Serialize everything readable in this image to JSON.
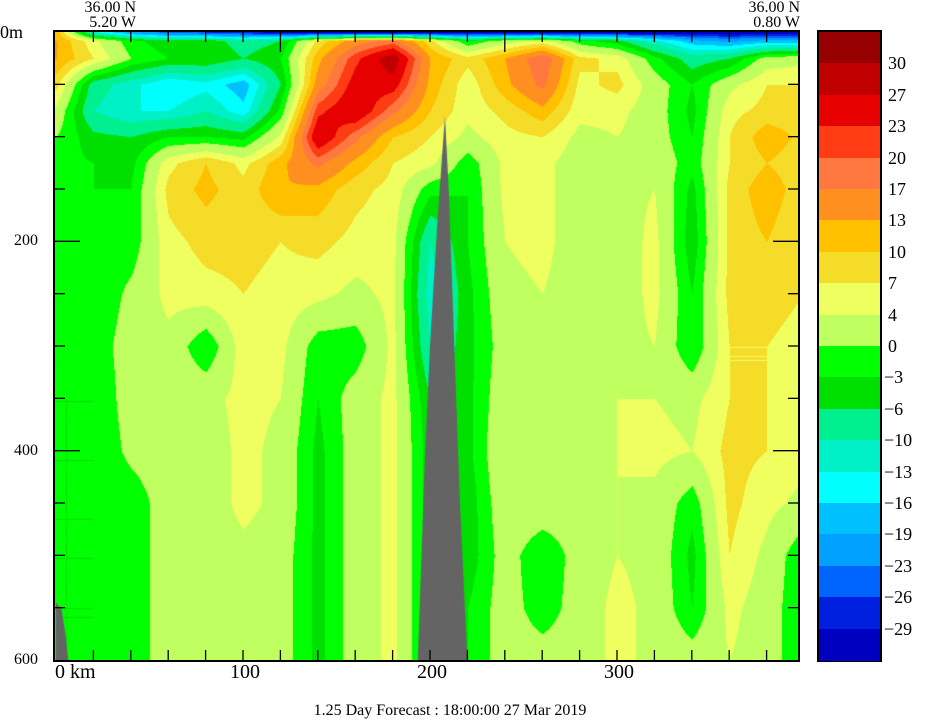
{
  "chart_data": {
    "type": "heatmap",
    "subtype": "filled-contour vertical section",
    "title": "1.25 Day Forecast : 18:00:00  27 Mar 2019",
    "header_left": {
      "lat": "36.00 N",
      "lon": "5.20 W"
    },
    "header_right": {
      "lat": "36.00 N",
      "lon": "0.80 W"
    },
    "xlabel": "km",
    "xlim": [
      0,
      397
    ],
    "xticks": [
      {
        "value": 0,
        "label": "0 km"
      },
      {
        "value": 100,
        "label": "100"
      },
      {
        "value": 200,
        "label": "200"
      },
      {
        "value": 300,
        "label": "300"
      }
    ],
    "xminor_step": 20,
    "ylim": [
      0,
      600
    ],
    "yinverted": true,
    "yticks": [
      {
        "value": 0,
        "label": "0m"
      },
      {
        "value": 200,
        "label": "200"
      },
      {
        "value": 400,
        "label": "400"
      },
      {
        "value": 600,
        "label": "600"
      }
    ],
    "yminor_step": 50,
    "grid": false,
    "colorbar": {
      "placement": "right",
      "levels": [
        -29,
        -26,
        -23,
        -19,
        -16,
        -13,
        -10,
        -6,
        -3,
        0,
        4,
        7,
        10,
        13,
        17,
        20,
        23,
        27,
        30
      ],
      "labels": [
        "30",
        "27",
        "23",
        "20",
        "17",
        "13",
        "10",
        "7",
        "4",
        "0",
        "−3",
        "−6",
        "−10",
        "−13",
        "−16",
        "−19",
        "−23",
        "−26",
        "−29"
      ],
      "colors_low_to_high": [
        "#0000c0",
        "#0020e0",
        "#0064ff",
        "#00a0ff",
        "#00c0ff",
        "#00ffff",
        "#00f0c8",
        "#00f090",
        "#00e000",
        "#00ff00",
        "#c0ff60",
        "#f0ff60",
        "#f5dc28",
        "#ffc000",
        "#ff9020",
        "#ff7840",
        "#ff3c14",
        "#e60000",
        "#c00000",
        "#960000"
      ]
    },
    "land_color": "#646464",
    "grid_km": [
      0,
      20,
      40,
      60,
      80,
      100,
      120,
      140,
      160,
      180,
      200,
      220,
      240,
      260,
      280,
      300,
      320,
      340,
      360,
      380,
      400
    ],
    "grid_depth_m": [
      0,
      8,
      25,
      50,
      75,
      100,
      125,
      150,
      200,
      250,
      300,
      350,
      400,
      450,
      500,
      550,
      600
    ],
    "values": [
      [
        12,
        -12,
        -20,
        -24,
        -26,
        -28,
        -30,
        -32,
        -32,
        -32,
        -32,
        -32,
        -32,
        -32,
        -32,
        -32,
        -32,
        -32,
        -32,
        -32,
        -32
      ],
      [
        13,
        5,
        -2,
        -5,
        -4,
        -8,
        -6,
        8,
        15,
        18,
        8,
        -3,
        2,
        5,
        -2,
        -5,
        -12,
        -18,
        -20,
        -18,
        -18
      ],
      [
        13,
        7,
        0,
        -3,
        -3,
        -6,
        -3,
        12,
        22,
        30,
        13,
        8,
        13,
        20,
        8,
        6,
        -2,
        -8,
        -6,
        2,
        3
      ],
      [
        8,
        -8,
        -12,
        -16,
        -14,
        -18,
        -6,
        15,
        25,
        25,
        12,
        5,
        12,
        18,
        6,
        8,
        2,
        -3,
        3,
        7,
        7
      ],
      [
        3,
        -10,
        -13,
        -13,
        -10,
        -15,
        -2,
        22,
        27,
        18,
        10,
        5,
        8,
        12,
        5,
        5,
        2,
        -4,
        6,
        8,
        8
      ],
      [
        0,
        -5,
        -6,
        -3,
        -3,
        -4,
        5,
        27,
        18,
        10,
        7,
        3,
        6,
        7,
        3,
        4,
        2,
        -3,
        7,
        12,
        9
      ],
      [
        -2,
        -3,
        -4,
        6,
        10,
        6,
        12,
        18,
        12,
        7,
        5,
        -2,
        5,
        5,
        2,
        3,
        3,
        -2,
        7,
        10,
        8
      ],
      [
        -2,
        -3,
        -3,
        8,
        11,
        8,
        13,
        12,
        8,
        6,
        -2,
        -3,
        5,
        5,
        2,
        3,
        4,
        -4,
        8,
        12,
        8
      ],
      [
        -2,
        -3,
        -2,
        6,
        8,
        8,
        7,
        8,
        6,
        5,
        -10,
        -3,
        4,
        5,
        2,
        2,
        5,
        -5,
        8,
        10,
        7
      ],
      [
        -3,
        -3,
        1,
        5,
        6,
        7,
        6,
        5,
        3,
        5,
        -12,
        -4,
        3,
        4,
        2,
        2,
        5,
        -3,
        8,
        8,
        7
      ],
      [
        -3,
        -2,
        2,
        3,
        -3,
        6,
        5,
        -2,
        -2,
        5,
        -10,
        -4,
        2,
        3,
        3,
        3,
        4,
        -3,
        7,
        7,
        6
      ],
      [
        -3,
        -3,
        2,
        3,
        3,
        5,
        4,
        -3,
        2,
        5,
        -6,
        -4,
        3,
        3,
        2,
        4,
        4,
        3,
        7,
        7,
        6
      ],
      [
        -3,
        -3,
        1,
        2,
        2,
        5,
        3,
        -4,
        2,
        5,
        -5,
        -4,
        4,
        4,
        2,
        4,
        5,
        4,
        8,
        7,
        5
      ],
      [
        -3,
        -3,
        -2,
        2,
        2,
        5,
        3,
        -4,
        2,
        5,
        -5,
        -5,
        3,
        3,
        2,
        4,
        3,
        -2,
        8,
        5,
        3
      ],
      [
        -3,
        -3,
        -2,
        2,
        2,
        3,
        2,
        -4,
        2,
        5,
        -5,
        -5,
        2,
        -3,
        2,
        4,
        3,
        -4,
        7,
        3,
        -3
      ],
      [
        -3,
        -3,
        -2,
        2,
        2,
        3,
        2,
        -4,
        2,
        5,
        -5,
        -3,
        2,
        -2,
        2,
        5,
        3,
        -3,
        5,
        2,
        -3
      ],
      [
        -3,
        -3,
        -2,
        2,
        2,
        3,
        2,
        -4,
        2,
        5,
        -5,
        -3,
        2,
        2,
        2,
        5,
        3,
        2,
        4,
        2,
        -3
      ]
    ],
    "bathymetry": [
      [
        [
          0,
          545
        ],
        [
          3,
          552
        ],
        [
          5,
          575
        ],
        [
          6.5,
          600
        ],
        [
          0,
          600
        ]
      ],
      [
        [
          193.5,
          600
        ],
        [
          197,
          420
        ],
        [
          200,
          300
        ],
        [
          204,
          180
        ],
        [
          208,
          80
        ],
        [
          210,
          150
        ],
        [
          213,
          300
        ],
        [
          216,
          450
        ],
        [
          220,
          600
        ]
      ]
    ]
  }
}
